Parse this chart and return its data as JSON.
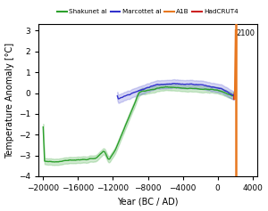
{
  "title": "",
  "xlabel": "Year (BC / AD)",
  "ylabel": "Temperature Anomaly [°C]",
  "xlim": [
    -20500,
    4500
  ],
  "ylim": [
    -4,
    3.3
  ],
  "xticks": [
    -20000,
    -16000,
    -12000,
    -8000,
    -4000,
    0,
    4000
  ],
  "yticks": [
    -4,
    -3,
    -2,
    -1,
    0,
    1,
    2,
    3
  ],
  "legend_labels": [
    "Shakunet al",
    "Marcottet al",
    "A1B",
    "HadCRUT4"
  ],
  "legend_colors": [
    "#2ca02c",
    "#3333cc",
    "#e87820",
    "#cc2222"
  ],
  "shakin_color": "#2ca02c",
  "marcott_color": "#3333cc",
  "a1b_color": "#e87820",
  "hadcrut_color": "#cc2222",
  "annotation_2100": "2100",
  "bg_color": "#f5f5e8"
}
